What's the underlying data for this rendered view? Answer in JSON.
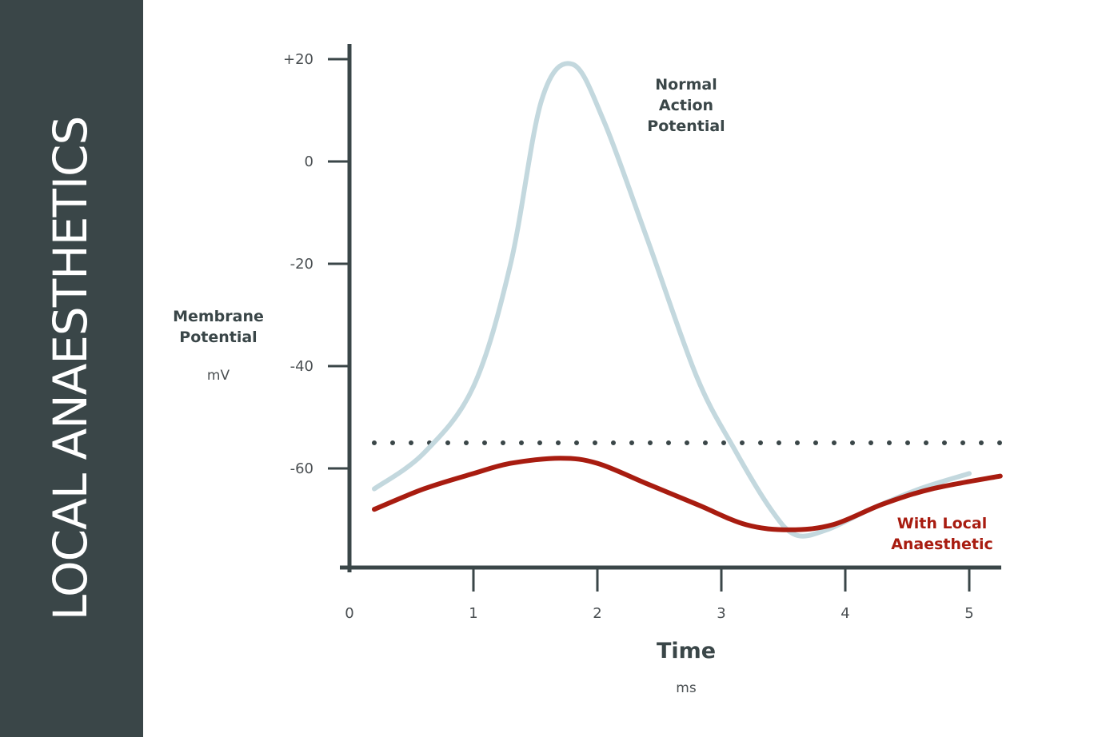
{
  "sidebar": {
    "title": "LOCAL ANAESTHETICS"
  },
  "chart_data": {
    "type": "line",
    "xlabel": "Time",
    "xunit": "ms",
    "ylabel_lines": [
      "Membrane",
      "Potential"
    ],
    "yunit": "mV",
    "xlim": [
      0,
      5.25
    ],
    "ylim": [
      -78,
      24
    ],
    "x_ticks": [
      {
        "value": 0,
        "label": "0"
      },
      {
        "value": 1,
        "label": "1"
      },
      {
        "value": 2,
        "label": "2"
      },
      {
        "value": 3,
        "label": "3"
      },
      {
        "value": 4,
        "label": "4"
      },
      {
        "value": 5,
        "label": "5"
      }
    ],
    "y_ticks": [
      {
        "value": 20,
        "label": "+20"
      },
      {
        "value": 0,
        "label": "0"
      },
      {
        "value": -20,
        "label": "-20"
      },
      {
        "value": -40,
        "label": "-40"
      },
      {
        "value": -60,
        "label": "-60"
      }
    ],
    "threshold": {
      "value": -55,
      "style": "dotted",
      "color": "#3a4648"
    },
    "series": [
      {
        "key": "normal",
        "name_lines": [
          "Normal",
          "Action",
          "Potential"
        ],
        "color": "#c3d8de",
        "x": [
          0.2,
          0.6,
          1.0,
          1.3,
          1.55,
          1.8,
          2.05,
          2.4,
          2.8,
          3.1,
          3.4,
          3.6,
          3.85,
          4.2,
          4.6,
          5.0
        ],
        "y": [
          -64,
          -57,
          -44,
          -20,
          12,
          19,
          8,
          -15,
          -42,
          -56,
          -68,
          -73,
          -72,
          -68,
          -64,
          -61
        ]
      },
      {
        "key": "local",
        "name_lines": [
          "With Local",
          "Anaesthetic"
        ],
        "color": "#a81c10",
        "x": [
          0.2,
          0.6,
          1.0,
          1.3,
          1.7,
          2.0,
          2.4,
          2.8,
          3.2,
          3.55,
          3.9,
          4.3,
          4.7,
          5.25
        ],
        "y": [
          -68,
          -64,
          -61,
          -59,
          -58,
          -59,
          -63,
          -67,
          -71,
          -72,
          -71,
          -67,
          -64,
          -61.5
        ]
      }
    ]
  }
}
